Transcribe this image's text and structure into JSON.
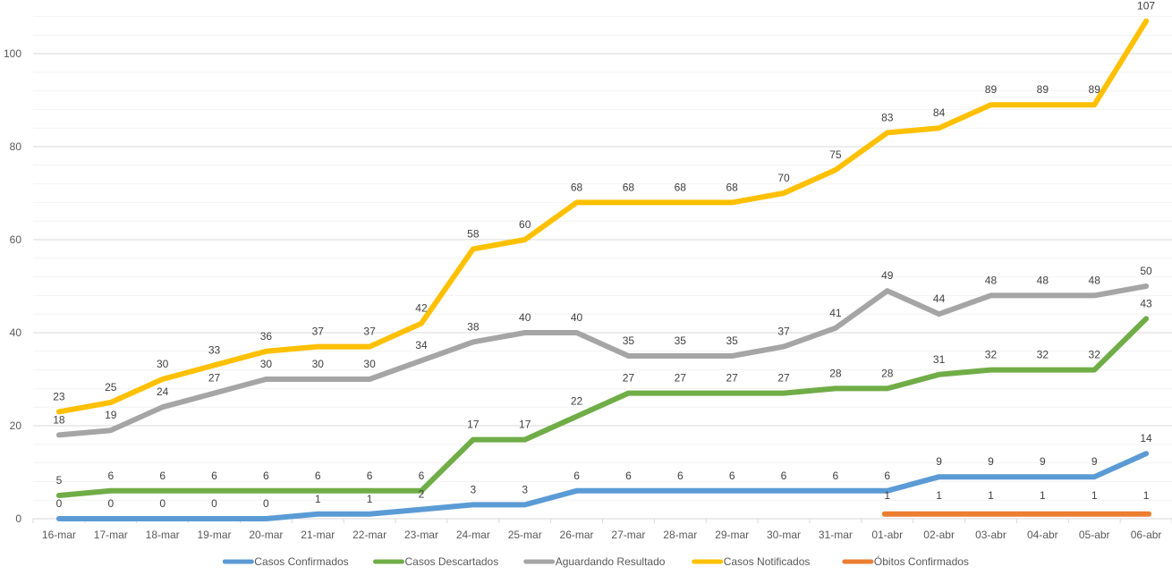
{
  "chart_data": {
    "type": "line",
    "title": "",
    "xlabel": "",
    "ylabel": "",
    "ylim": [
      0,
      110
    ],
    "yticks": [
      0,
      20,
      40,
      60,
      80,
      100
    ],
    "minor_gridlines": true,
    "legend_position": "bottom",
    "categories": [
      "16-mar",
      "17-mar",
      "18-mar",
      "19-mar",
      "20-mar",
      "21-mar",
      "22-mar",
      "23-mar",
      "24-mar",
      "25-mar",
      "26-mar",
      "27-mar",
      "28-mar",
      "29-mar",
      "30-mar",
      "31-mar",
      "01-abr",
      "02-abr",
      "03-abr",
      "04-abr",
      "05-abr",
      "06-abr"
    ],
    "series": [
      {
        "name": "Casos Confirmados",
        "color": "#5B9BD5",
        "values": [
          0,
          0,
          0,
          0,
          0,
          1,
          1,
          2,
          3,
          3,
          6,
          6,
          6,
          6,
          6,
          6,
          6,
          9,
          9,
          9,
          9,
          14
        ],
        "labels": [
          "0",
          "0",
          "0",
          "0",
          "0",
          "1",
          "1",
          "2",
          "3",
          "3",
          "6",
          "6",
          "6",
          "6",
          "6",
          "6",
          "6",
          "9",
          "9",
          "9",
          "9",
          "14"
        ]
      },
      {
        "name": "Casos Descartados",
        "color": "#70AD47",
        "values": [
          5,
          6,
          6,
          6,
          6,
          6,
          6,
          6,
          17,
          17,
          22,
          27,
          27,
          27,
          27,
          28,
          28,
          31,
          32,
          32,
          32,
          43
        ],
        "labels": [
          "5",
          "6",
          "6",
          "6",
          "6",
          "6",
          "6",
          "6",
          "17",
          "17",
          "22",
          "27",
          "27",
          "27",
          "27",
          "28",
          "28",
          "31",
          "32",
          "32",
          "32",
          "43"
        ]
      },
      {
        "name": "Aguardando Resultado",
        "color": "#A5A5A5",
        "values": [
          18,
          19,
          24,
          27,
          30,
          30,
          30,
          34,
          38,
          40,
          40,
          35,
          35,
          35,
          37,
          41,
          49,
          44,
          48,
          48,
          48,
          50
        ],
        "labels": [
          "18",
          "19",
          "24",
          "27",
          "30",
          "30",
          "30",
          "34",
          "38",
          "40",
          "40",
          "35",
          "35",
          "35",
          "37",
          "41",
          "49",
          "44",
          "48",
          "48",
          "48",
          "50"
        ]
      },
      {
        "name": "Casos Notificados",
        "color": "#FFC000",
        "values": [
          23,
          25,
          30,
          33,
          36,
          37,
          37,
          42,
          58,
          60,
          68,
          68,
          68,
          68,
          70,
          75,
          83,
          84,
          89,
          89,
          89,
          107
        ],
        "labels": [
          "23",
          "25",
          "30",
          "33",
          "36",
          "37",
          "37",
          "42",
          "58",
          "60",
          "68",
          "68",
          "68",
          "68",
          "70",
          "75",
          "83",
          "84",
          "89",
          "89",
          "89",
          "107"
        ]
      },
      {
        "name": "Óbitos Confirmados",
        "color": "#ED7D31",
        "values": [
          null,
          null,
          null,
          null,
          null,
          null,
          null,
          null,
          null,
          null,
          null,
          null,
          null,
          null,
          null,
          null,
          1,
          1,
          1,
          1,
          1,
          1
        ],
        "labels": [
          "",
          "",
          "",
          "",
          "",
          "",
          "",
          "",
          "",
          "",
          "",
          "",
          "",
          "",
          "",
          "",
          "1",
          "1",
          "1",
          "1",
          "1",
          "1"
        ]
      }
    ]
  }
}
